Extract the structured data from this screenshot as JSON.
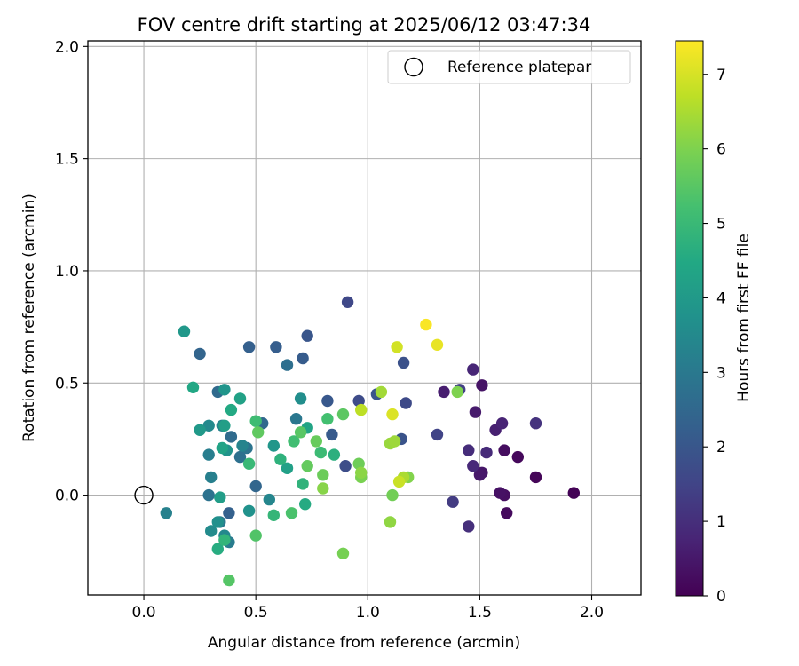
{
  "chart_data": {
    "type": "scatter",
    "title": "FOV centre drift starting at 2025/06/12 03:47:34",
    "xlabel": "Angular distance from reference (arcmin)",
    "ylabel": "Rotation from reference (arcmin)",
    "xlim": [
      -0.25,
      2.22
    ],
    "ylim": [
      -0.445,
      2.025
    ],
    "xticks": [
      0.0,
      0.5,
      1.0,
      1.5,
      2.0
    ],
    "xtick_labels": [
      "0.0",
      "0.5",
      "1.0",
      "1.5",
      "2.0"
    ],
    "yticks": [
      0.0,
      0.5,
      1.0,
      1.5,
      2.0
    ],
    "ytick_labels": [
      "0.0",
      "0.5",
      "1.0",
      "1.5",
      "2.0"
    ],
    "grid": true,
    "legend": {
      "position": "top-right",
      "label": "Reference platepar"
    },
    "reference_point": {
      "x": 0.0,
      "y": 0.0
    },
    "colorbar": {
      "label": "Hours from first FF file",
      "min": 0,
      "max": 7.45,
      "ticks": [
        0,
        1,
        2,
        3,
        4,
        5,
        6,
        7
      ],
      "tick_labels": [
        "0",
        "1",
        "2",
        "3",
        "4",
        "5",
        "6",
        "7"
      ],
      "colormap": "viridis"
    },
    "points": [
      {
        "x": 1.92,
        "y": 0.01,
        "h": 0.05
      },
      {
        "x": 1.75,
        "y": 0.08,
        "h": 0.1
      },
      {
        "x": 1.67,
        "y": 0.17,
        "h": 0.15
      },
      {
        "x": 1.62,
        "y": -0.08,
        "h": 0.2
      },
      {
        "x": 1.61,
        "y": 0.2,
        "h": 0.25
      },
      {
        "x": 1.61,
        "y": 0.0,
        "h": 0.3
      },
      {
        "x": 1.59,
        "y": 0.01,
        "h": 0.35
      },
      {
        "x": 1.51,
        "y": 0.49,
        "h": 0.4
      },
      {
        "x": 1.51,
        "y": 0.1,
        "h": 0.45
      },
      {
        "x": 1.5,
        "y": 0.09,
        "h": 0.5
      },
      {
        "x": 1.48,
        "y": 0.37,
        "h": 0.55
      },
      {
        "x": 1.34,
        "y": 0.46,
        "h": 0.6
      },
      {
        "x": 1.57,
        "y": 0.29,
        "h": 0.65
      },
      {
        "x": 1.6,
        "y": 0.32,
        "h": 0.75
      },
      {
        "x": 1.47,
        "y": 0.56,
        "h": 0.8
      },
      {
        "x": 1.47,
        "y": 0.13,
        "h": 0.85
      },
      {
        "x": 1.53,
        "y": 0.19,
        "h": 0.9
      },
      {
        "x": 1.45,
        "y": 0.2,
        "h": 0.95
      },
      {
        "x": 1.45,
        "y": -0.14,
        "h": 1.0
      },
      {
        "x": 1.75,
        "y": 0.32,
        "h": 1.1
      },
      {
        "x": 1.38,
        "y": -0.03,
        "h": 1.3
      },
      {
        "x": 1.41,
        "y": 0.47,
        "h": 1.4
      },
      {
        "x": 1.31,
        "y": 0.27,
        "h": 1.5
      },
      {
        "x": 0.91,
        "y": 0.86,
        "h": 1.6
      },
      {
        "x": 1.17,
        "y": 0.41,
        "h": 1.65
      },
      {
        "x": 0.96,
        "y": 0.42,
        "h": 1.7
      },
      {
        "x": 0.9,
        "y": 0.13,
        "h": 1.75
      },
      {
        "x": 1.16,
        "y": 0.59,
        "h": 1.85
      },
      {
        "x": 1.15,
        "y": 0.25,
        "h": 1.9
      },
      {
        "x": 1.04,
        "y": 0.45,
        "h": 1.95
      },
      {
        "x": 0.73,
        "y": 0.71,
        "h": 2.0
      },
      {
        "x": 0.82,
        "y": 0.42,
        "h": 2.05
      },
      {
        "x": 0.84,
        "y": 0.27,
        "h": 2.1
      },
      {
        "x": 0.71,
        "y": 0.61,
        "h": 2.15
      },
      {
        "x": 0.59,
        "y": 0.66,
        "h": 2.2
      },
      {
        "x": 0.47,
        "y": 0.66,
        "h": 2.25
      },
      {
        "x": 0.38,
        "y": -0.08,
        "h": 2.3
      },
      {
        "x": 0.25,
        "y": 0.63,
        "h": 2.4
      },
      {
        "x": 0.5,
        "y": 0.04,
        "h": 2.45
      },
      {
        "x": 0.53,
        "y": 0.32,
        "h": 2.5
      },
      {
        "x": 0.33,
        "y": 0.46,
        "h": 2.55
      },
      {
        "x": 0.39,
        "y": 0.26,
        "h": 2.6
      },
      {
        "x": 0.64,
        "y": 0.58,
        "h": 2.7
      },
      {
        "x": 0.43,
        "y": 0.17,
        "h": 2.75
      },
      {
        "x": 0.29,
        "y": 0.0,
        "h": 2.8
      },
      {
        "x": 0.46,
        "y": 0.21,
        "h": 2.85
      },
      {
        "x": 0.68,
        "y": 0.34,
        "h": 2.95
      },
      {
        "x": 0.34,
        "y": -0.12,
        "h": 3.0
      },
      {
        "x": 0.38,
        "y": -0.21,
        "h": 3.1
      },
      {
        "x": 0.29,
        "y": 0.18,
        "h": 3.15
      },
      {
        "x": 0.3,
        "y": 0.08,
        "h": 3.2
      },
      {
        "x": 0.1,
        "y": -0.08,
        "h": 3.25
      },
      {
        "x": 0.35,
        "y": 0.31,
        "h": 3.3
      },
      {
        "x": 0.44,
        "y": 0.22,
        "h": 3.35
      },
      {
        "x": 0.56,
        "y": -0.02,
        "h": 3.4
      },
      {
        "x": 0.36,
        "y": -0.18,
        "h": 3.45
      },
      {
        "x": 0.29,
        "y": 0.31,
        "h": 3.5
      },
      {
        "x": 0.3,
        "y": -0.16,
        "h": 3.55
      },
      {
        "x": 0.7,
        "y": 0.43,
        "h": 3.65
      },
      {
        "x": 0.33,
        "y": -0.12,
        "h": 3.7
      },
      {
        "x": 0.47,
        "y": -0.07,
        "h": 3.75
      },
      {
        "x": 0.37,
        "y": 0.2,
        "h": 3.8
      },
      {
        "x": 0.36,
        "y": 0.47,
        "h": 3.85
      },
      {
        "x": 0.58,
        "y": 0.22,
        "h": 3.9
      },
      {
        "x": 0.18,
        "y": 0.73,
        "h": 3.95
      },
      {
        "x": 0.25,
        "y": 0.29,
        "h": 4.0
      },
      {
        "x": 0.34,
        "y": -0.01,
        "h": 4.1
      },
      {
        "x": 0.36,
        "y": 0.31,
        "h": 4.15
      },
      {
        "x": 0.64,
        "y": 0.12,
        "h": 4.2
      },
      {
        "x": 0.43,
        "y": 0.43,
        "h": 4.25
      },
      {
        "x": 0.35,
        "y": 0.21,
        "h": 4.3
      },
      {
        "x": 0.73,
        "y": 0.3,
        "h": 4.35
      },
      {
        "x": 0.22,
        "y": 0.48,
        "h": 4.45
      },
      {
        "x": 0.39,
        "y": 0.38,
        "h": 4.5
      },
      {
        "x": 0.72,
        "y": -0.04,
        "h": 4.55
      },
      {
        "x": 0.33,
        "y": -0.24,
        "h": 4.6
      },
      {
        "x": 0.85,
        "y": 0.18,
        "h": 4.7
      },
      {
        "x": 0.61,
        "y": 0.16,
        "h": 4.75
      },
      {
        "x": 0.71,
        "y": 0.05,
        "h": 4.8
      },
      {
        "x": 0.36,
        "y": -0.2,
        "h": 4.85
      },
      {
        "x": 0.58,
        "y": -0.09,
        "h": 4.9
      },
      {
        "x": 0.47,
        "y": 0.14,
        "h": 5.0
      },
      {
        "x": 0.79,
        "y": 0.19,
        "h": 5.05
      },
      {
        "x": 0.5,
        "y": 0.33,
        "h": 5.1
      },
      {
        "x": 0.67,
        "y": 0.24,
        "h": 5.15
      },
      {
        "x": 0.82,
        "y": 0.34,
        "h": 5.2
      },
      {
        "x": 0.66,
        "y": -0.08,
        "h": 5.3
      },
      {
        "x": 0.5,
        "y": -0.18,
        "h": 5.4
      },
      {
        "x": 0.38,
        "y": -0.38,
        "h": 5.45
      },
      {
        "x": 0.7,
        "y": 0.28,
        "h": 5.5
      },
      {
        "x": 0.89,
        "y": 0.36,
        "h": 5.55
      },
      {
        "x": 0.51,
        "y": 0.28,
        "h": 5.6
      },
      {
        "x": 0.73,
        "y": 0.13,
        "h": 5.65
      },
      {
        "x": 0.77,
        "y": 0.24,
        "h": 5.7
      },
      {
        "x": 0.8,
        "y": 0.09,
        "h": 5.75
      },
      {
        "x": 0.96,
        "y": 0.14,
        "h": 5.8
      },
      {
        "x": 1.11,
        "y": 0.0,
        "h": 5.85
      },
      {
        "x": 0.89,
        "y": -0.26,
        "h": 5.9
      },
      {
        "x": 0.97,
        "y": 0.08,
        "h": 5.95
      },
      {
        "x": 1.4,
        "y": 0.46,
        "h": 6.0
      },
      {
        "x": 1.18,
        "y": 0.08,
        "h": 6.05
      },
      {
        "x": 0.8,
        "y": 0.03,
        "h": 6.1
      },
      {
        "x": 0.97,
        "y": 0.1,
        "h": 6.15
      },
      {
        "x": 1.1,
        "y": -0.12,
        "h": 6.2
      },
      {
        "x": 1.1,
        "y": 0.23,
        "h": 6.3
      },
      {
        "x": 1.12,
        "y": 0.24,
        "h": 6.35
      },
      {
        "x": 1.06,
        "y": 0.46,
        "h": 6.4
      },
      {
        "x": 1.16,
        "y": 0.08,
        "h": 6.5
      },
      {
        "x": 0.97,
        "y": 0.38,
        "h": 6.7
      },
      {
        "x": 1.14,
        "y": 0.06,
        "h": 6.85
      },
      {
        "x": 1.13,
        "y": 0.66,
        "h": 6.95
      },
      {
        "x": 1.11,
        "y": 0.36,
        "h": 7.05
      },
      {
        "x": 1.31,
        "y": 0.67,
        "h": 7.2
      },
      {
        "x": 1.26,
        "y": 0.76,
        "h": 7.4
      }
    ]
  }
}
